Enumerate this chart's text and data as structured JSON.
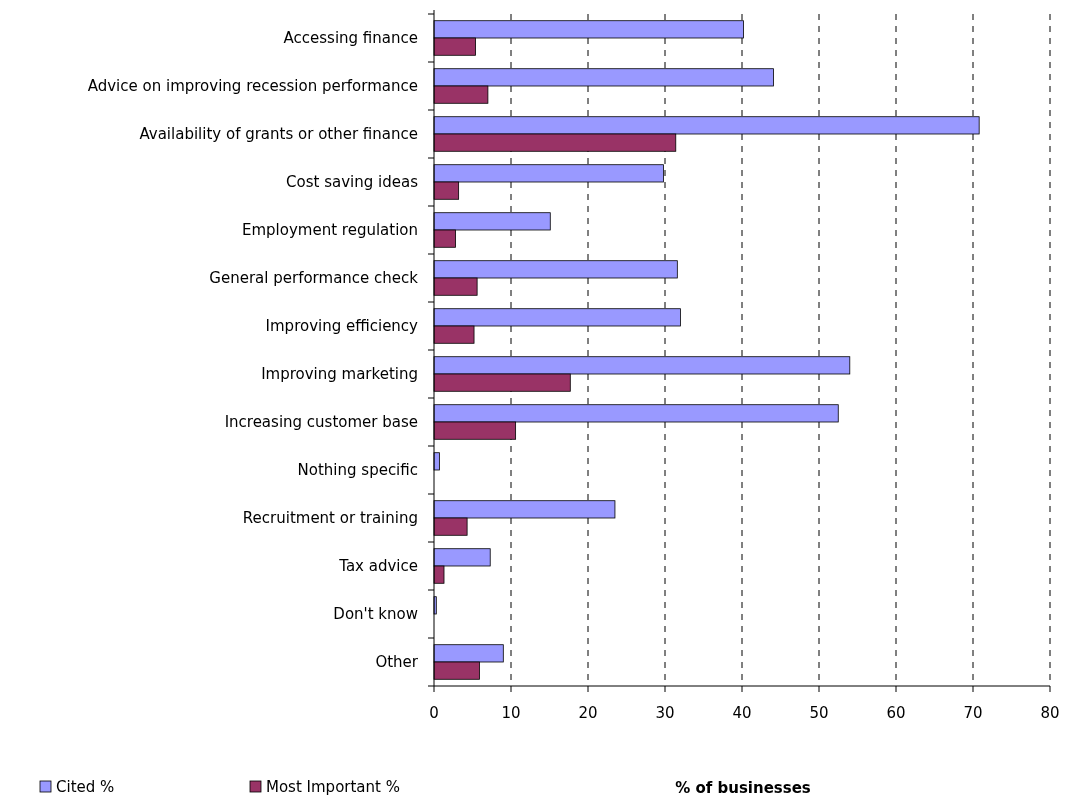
{
  "chart_data": {
    "type": "bar",
    "orientation": "horizontal",
    "xlabel": "% of businesses",
    "categories": [
      "Accessing finance",
      "Advice on improving recession performance",
      "Availability of grants or other finance ",
      "Cost saving ideas",
      "Employment regulation",
      "General performance check",
      "Improving efficiency",
      "Improving marketing",
      "Increasing customer base",
      "Nothing specific",
      "Recruitment or training",
      "Tax advice",
      "Don't know",
      "Other"
    ],
    "series": [
      {
        "name": "Cited %",
        "color": "#9999ff",
        "values": [
          40.2,
          44.1,
          70.8,
          29.8,
          15.1,
          31.6,
          32.0,
          54.0,
          52.5,
          0.7,
          23.5,
          7.3,
          0.3,
          9.0
        ]
      },
      {
        "name": "Most Important %",
        "color": "#993366",
        "values": [
          5.4,
          7.0,
          31.4,
          3.2,
          2.8,
          5.6,
          5.2,
          17.7,
          10.6,
          null,
          4.3,
          1.3,
          null,
          5.9
        ]
      }
    ],
    "xlim": [
      0,
      80
    ],
    "xticks": [
      0,
      10,
      20,
      30,
      40,
      50,
      60,
      70,
      80
    ],
    "grid": "x",
    "legend": "bottom left"
  }
}
